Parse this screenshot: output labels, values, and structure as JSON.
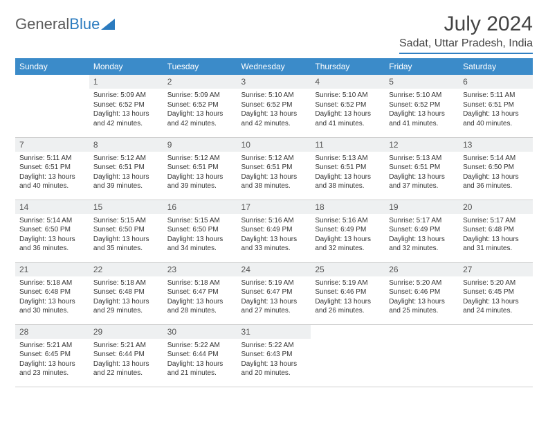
{
  "logo": {
    "text1": "General",
    "text2": "Blue"
  },
  "title": "July 2024",
  "location": "Sadat, Uttar Pradesh, India",
  "colors": {
    "header_bg": "#3b8bc9",
    "header_text": "#ffffff",
    "daynum_bg": "#eef0f1",
    "rule": "#2f7fc2"
  },
  "weekdays": [
    "Sunday",
    "Monday",
    "Tuesday",
    "Wednesday",
    "Thursday",
    "Friday",
    "Saturday"
  ],
  "weeks": [
    [
      {
        "empty": true
      },
      {
        "n": "1",
        "sr": "Sunrise: 5:09 AM",
        "ss": "Sunset: 6:52 PM",
        "dl": "Daylight: 13 hours and 42 minutes."
      },
      {
        "n": "2",
        "sr": "Sunrise: 5:09 AM",
        "ss": "Sunset: 6:52 PM",
        "dl": "Daylight: 13 hours and 42 minutes."
      },
      {
        "n": "3",
        "sr": "Sunrise: 5:10 AM",
        "ss": "Sunset: 6:52 PM",
        "dl": "Daylight: 13 hours and 42 minutes."
      },
      {
        "n": "4",
        "sr": "Sunrise: 5:10 AM",
        "ss": "Sunset: 6:52 PM",
        "dl": "Daylight: 13 hours and 41 minutes."
      },
      {
        "n": "5",
        "sr": "Sunrise: 5:10 AM",
        "ss": "Sunset: 6:52 PM",
        "dl": "Daylight: 13 hours and 41 minutes."
      },
      {
        "n": "6",
        "sr": "Sunrise: 5:11 AM",
        "ss": "Sunset: 6:51 PM",
        "dl": "Daylight: 13 hours and 40 minutes."
      }
    ],
    [
      {
        "n": "7",
        "sr": "Sunrise: 5:11 AM",
        "ss": "Sunset: 6:51 PM",
        "dl": "Daylight: 13 hours and 40 minutes."
      },
      {
        "n": "8",
        "sr": "Sunrise: 5:12 AM",
        "ss": "Sunset: 6:51 PM",
        "dl": "Daylight: 13 hours and 39 minutes."
      },
      {
        "n": "9",
        "sr": "Sunrise: 5:12 AM",
        "ss": "Sunset: 6:51 PM",
        "dl": "Daylight: 13 hours and 39 minutes."
      },
      {
        "n": "10",
        "sr": "Sunrise: 5:12 AM",
        "ss": "Sunset: 6:51 PM",
        "dl": "Daylight: 13 hours and 38 minutes."
      },
      {
        "n": "11",
        "sr": "Sunrise: 5:13 AM",
        "ss": "Sunset: 6:51 PM",
        "dl": "Daylight: 13 hours and 38 minutes."
      },
      {
        "n": "12",
        "sr": "Sunrise: 5:13 AM",
        "ss": "Sunset: 6:51 PM",
        "dl": "Daylight: 13 hours and 37 minutes."
      },
      {
        "n": "13",
        "sr": "Sunrise: 5:14 AM",
        "ss": "Sunset: 6:50 PM",
        "dl": "Daylight: 13 hours and 36 minutes."
      }
    ],
    [
      {
        "n": "14",
        "sr": "Sunrise: 5:14 AM",
        "ss": "Sunset: 6:50 PM",
        "dl": "Daylight: 13 hours and 36 minutes."
      },
      {
        "n": "15",
        "sr": "Sunrise: 5:15 AM",
        "ss": "Sunset: 6:50 PM",
        "dl": "Daylight: 13 hours and 35 minutes."
      },
      {
        "n": "16",
        "sr": "Sunrise: 5:15 AM",
        "ss": "Sunset: 6:50 PM",
        "dl": "Daylight: 13 hours and 34 minutes."
      },
      {
        "n": "17",
        "sr": "Sunrise: 5:16 AM",
        "ss": "Sunset: 6:49 PM",
        "dl": "Daylight: 13 hours and 33 minutes."
      },
      {
        "n": "18",
        "sr": "Sunrise: 5:16 AM",
        "ss": "Sunset: 6:49 PM",
        "dl": "Daylight: 13 hours and 32 minutes."
      },
      {
        "n": "19",
        "sr": "Sunrise: 5:17 AM",
        "ss": "Sunset: 6:49 PM",
        "dl": "Daylight: 13 hours and 32 minutes."
      },
      {
        "n": "20",
        "sr": "Sunrise: 5:17 AM",
        "ss": "Sunset: 6:48 PM",
        "dl": "Daylight: 13 hours and 31 minutes."
      }
    ],
    [
      {
        "n": "21",
        "sr": "Sunrise: 5:18 AM",
        "ss": "Sunset: 6:48 PM",
        "dl": "Daylight: 13 hours and 30 minutes."
      },
      {
        "n": "22",
        "sr": "Sunrise: 5:18 AM",
        "ss": "Sunset: 6:48 PM",
        "dl": "Daylight: 13 hours and 29 minutes."
      },
      {
        "n": "23",
        "sr": "Sunrise: 5:18 AM",
        "ss": "Sunset: 6:47 PM",
        "dl": "Daylight: 13 hours and 28 minutes."
      },
      {
        "n": "24",
        "sr": "Sunrise: 5:19 AM",
        "ss": "Sunset: 6:47 PM",
        "dl": "Daylight: 13 hours and 27 minutes."
      },
      {
        "n": "25",
        "sr": "Sunrise: 5:19 AM",
        "ss": "Sunset: 6:46 PM",
        "dl": "Daylight: 13 hours and 26 minutes."
      },
      {
        "n": "26",
        "sr": "Sunrise: 5:20 AM",
        "ss": "Sunset: 6:46 PM",
        "dl": "Daylight: 13 hours and 25 minutes."
      },
      {
        "n": "27",
        "sr": "Sunrise: 5:20 AM",
        "ss": "Sunset: 6:45 PM",
        "dl": "Daylight: 13 hours and 24 minutes."
      }
    ],
    [
      {
        "n": "28",
        "sr": "Sunrise: 5:21 AM",
        "ss": "Sunset: 6:45 PM",
        "dl": "Daylight: 13 hours and 23 minutes."
      },
      {
        "n": "29",
        "sr": "Sunrise: 5:21 AM",
        "ss": "Sunset: 6:44 PM",
        "dl": "Daylight: 13 hours and 22 minutes."
      },
      {
        "n": "30",
        "sr": "Sunrise: 5:22 AM",
        "ss": "Sunset: 6:44 PM",
        "dl": "Daylight: 13 hours and 21 minutes."
      },
      {
        "n": "31",
        "sr": "Sunrise: 5:22 AM",
        "ss": "Sunset: 6:43 PM",
        "dl": "Daylight: 13 hours and 20 minutes."
      },
      {
        "empty": true
      },
      {
        "empty": true
      },
      {
        "empty": true
      }
    ]
  ]
}
